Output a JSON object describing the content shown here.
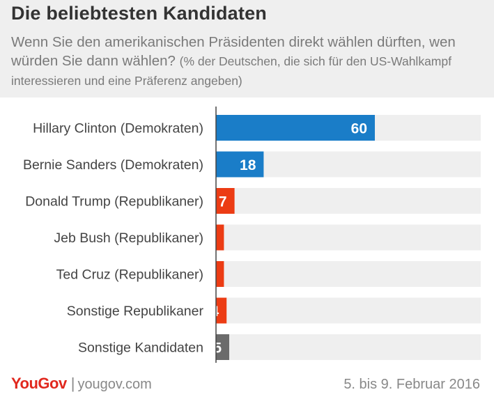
{
  "title": "Die beliebtesten  Kandidaten",
  "subtitle_main": "Wenn Sie den amerikanischen Präsidenten direkt wählen dürften, wen würden Sie dann wählen?",
  "subtitle_note": "(% der Deutschen, die sich für den US-Wahlkampf interessieren und eine Präferenz angeben)",
  "footer": {
    "logo": "YouGov",
    "url": "yougov.com",
    "date": "5. bis 9. Februar 2016"
  },
  "colors": {
    "democrat": "#1a7dc8",
    "republican": "#ec3c14",
    "other": "#6b6b6b",
    "track": "#efefef"
  },
  "chart_data": {
    "type": "bar",
    "orientation": "horizontal",
    "categories": [
      "Hillary Clinton (Demokraten)",
      "Bernie Sanders (Demokraten)",
      "Donald Trump (Republikaner)",
      "Jeb Bush (Republikaner)",
      "Ted Cruz (Republikaner)",
      "Sonstige Republikaner",
      "Sonstige Kandidaten"
    ],
    "values": [
      60,
      18,
      7,
      3,
      3,
      4,
      5
    ],
    "groups": [
      "democrat",
      "democrat",
      "republican",
      "republican",
      "republican",
      "republican",
      "other"
    ],
    "xlim": [
      0,
      100
    ],
    "grid": false,
    "legend": "none"
  }
}
